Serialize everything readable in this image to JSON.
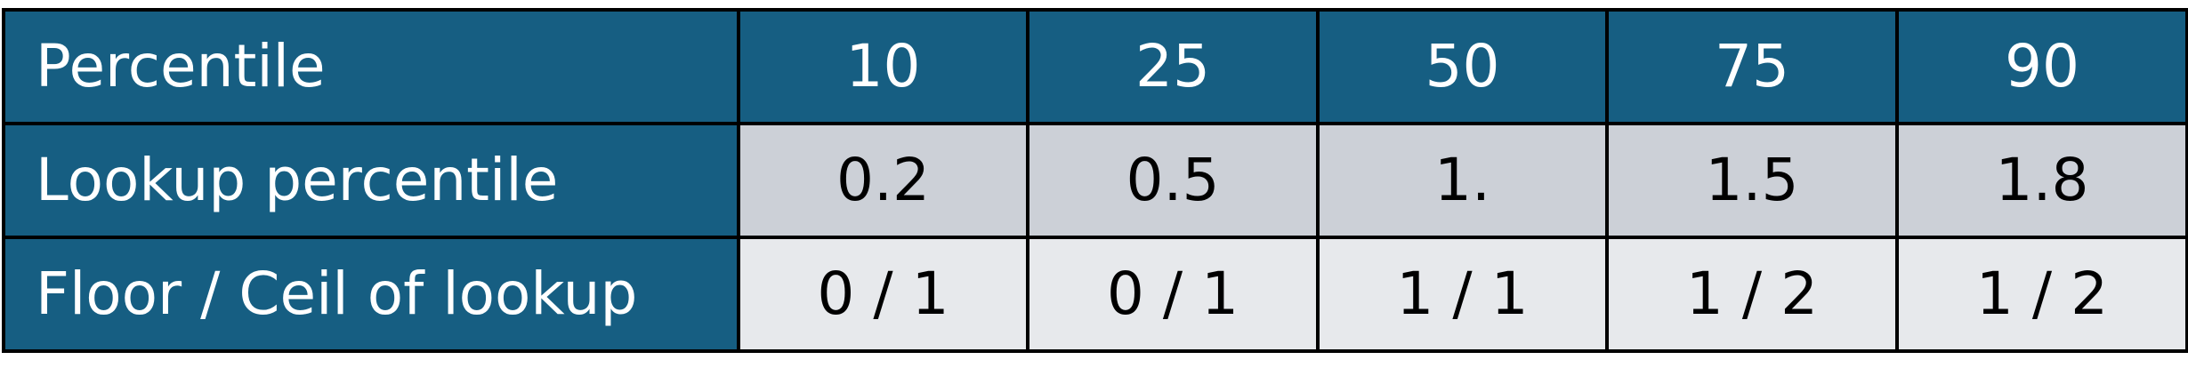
{
  "table": {
    "header": {
      "label": "Percentile",
      "values": [
        "10",
        "25",
        "50",
        "75",
        "90"
      ]
    },
    "rows": [
      {
        "label": "Lookup percentile",
        "values": [
          "0.2",
          "0.5",
          "1.",
          "1.5",
          "1.8"
        ]
      },
      {
        "label": "Floor / Ceil of lookup",
        "values": [
          "0 / 1",
          "0 / 1",
          "1 / 1",
          "1 / 2",
          "1 / 2"
        ]
      }
    ]
  },
  "colors": {
    "header_bg": "#165e82",
    "header_text": "#ffffff",
    "lookup_row_bg": "#ccd0d7",
    "floorceil_row_bg": "#e7e9ec",
    "border": "#000000"
  }
}
